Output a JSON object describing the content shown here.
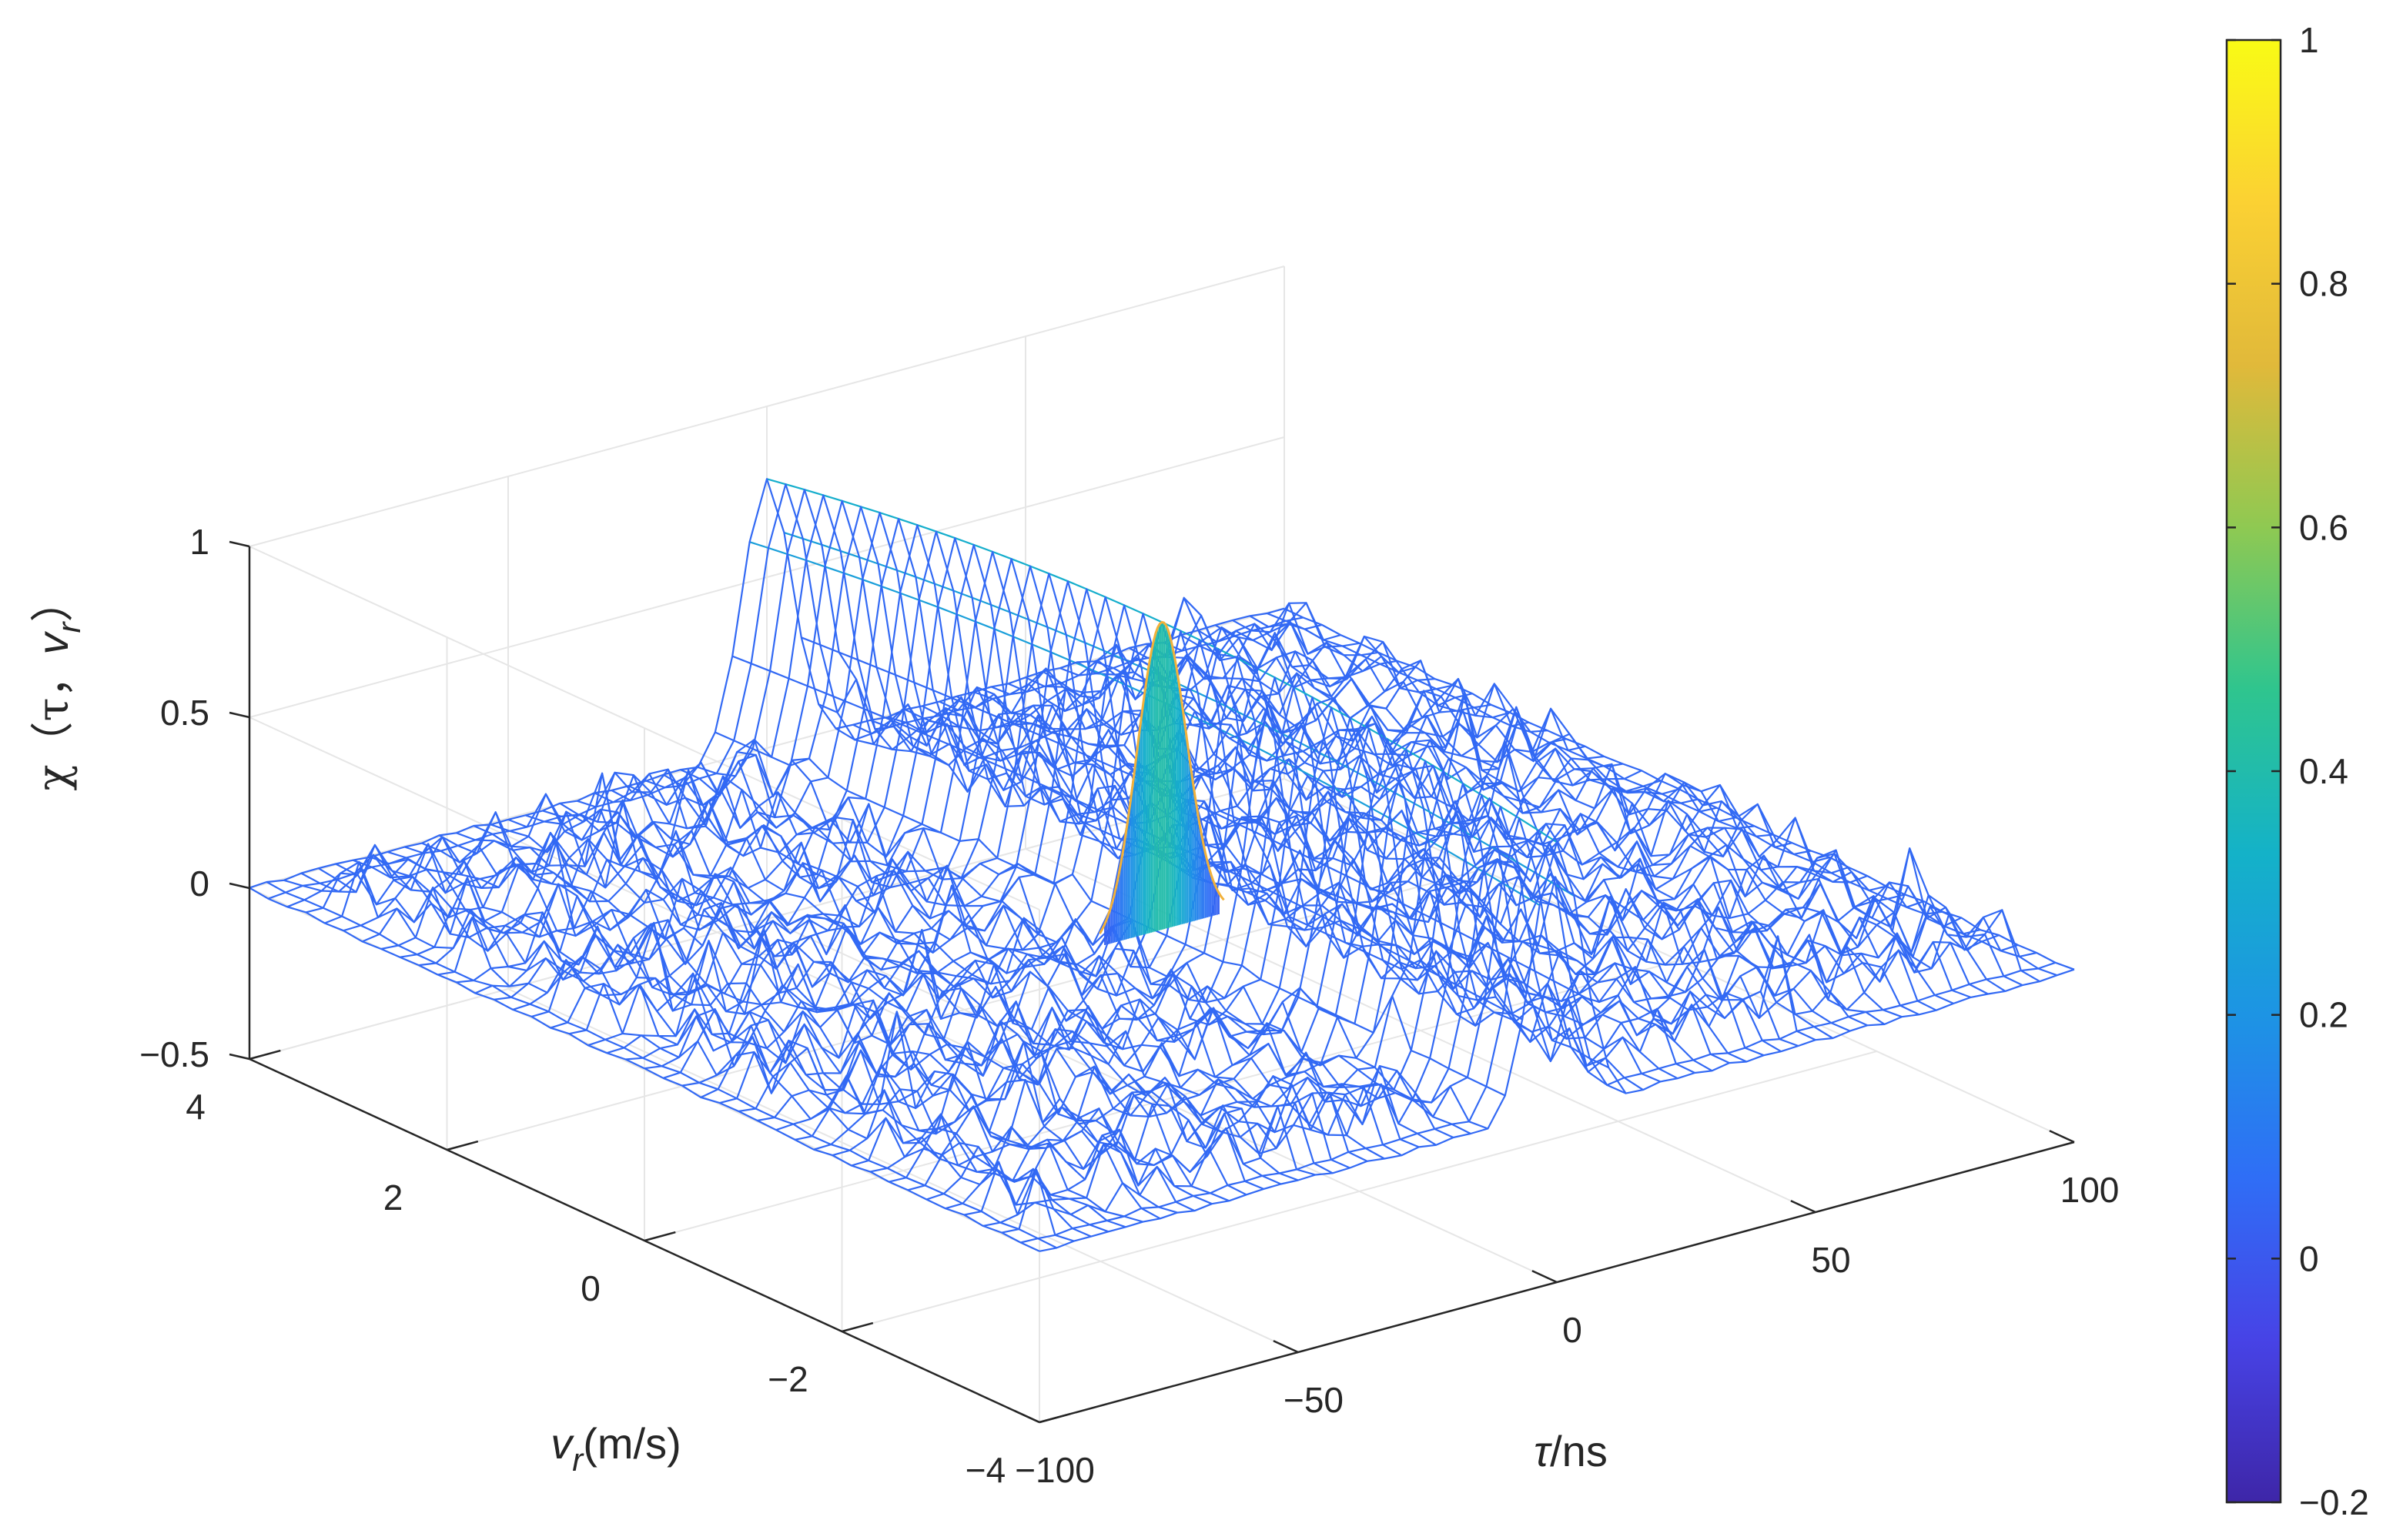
{
  "chart_data": {
    "type": "surface-mesh",
    "title": "",
    "xlabel": {
      "symbol": "τ",
      "unit": "/ns"
    },
    "ylabel": {
      "symbol": "v",
      "subscript": "r",
      "unit": "(m/s)"
    },
    "zlabel": {
      "prefix": "χ（τ，",
      "symbol": "v",
      "subscript": "r",
      "suffix": "）"
    },
    "xlim": [
      -100,
      100
    ],
    "ylim": [
      -4,
      4
    ],
    "zlim": [
      -0.5,
      1
    ],
    "xticks": [
      "−100",
      "−50",
      "0",
      "50",
      "100"
    ],
    "yticks": [
      "−4",
      "−2",
      "0",
      "2",
      "4"
    ],
    "zticks": [
      "−0.5",
      "0",
      "0.5",
      "1"
    ],
    "colorbar": {
      "limits": [
        -0.2,
        1
      ],
      "ticks": [
        "−0.2",
        "0",
        "0.2",
        "0.4",
        "0.6",
        "0.8",
        "1"
      ],
      "colormap": [
        "#3e26a8",
        "#4743e6",
        "#2f6ef6",
        "#1d94e4",
        "#14b2c8",
        "#2fc58e",
        "#8fc952",
        "#e1b93a",
        "#fbd133",
        "#f9fb15"
      ]
    },
    "peak": {
      "x": 0,
      "y": 0,
      "z": 0.9
    },
    "mainlobe_width_ns": 10,
    "sidelobe_level": 0.1,
    "grid": true,
    "mesh_color": "#3a5cf0",
    "peak_color": "#f2b13a"
  }
}
